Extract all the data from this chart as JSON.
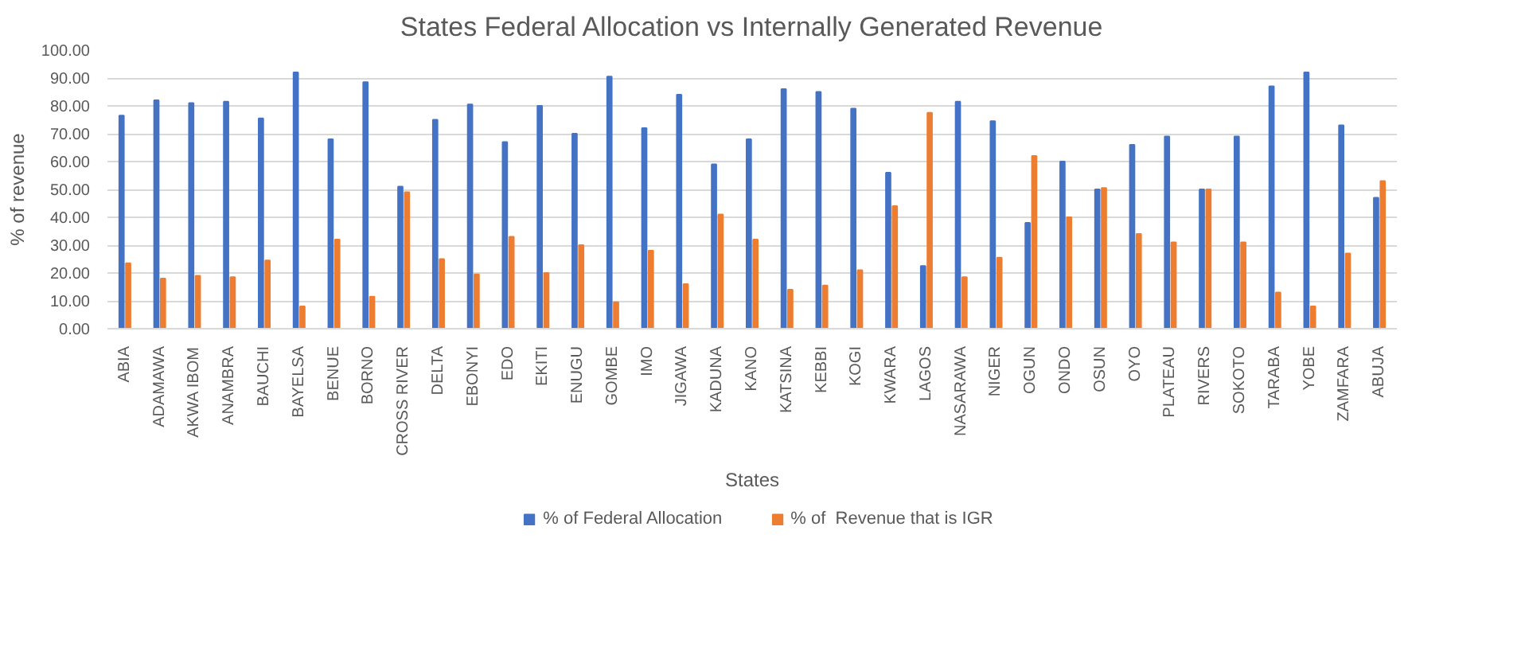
{
  "chart_data": {
    "type": "bar",
    "title": "States Federal Allocation vs Internally Generated Revenue",
    "xlabel": "States",
    "ylabel": "% of revenue",
    "categories": [
      "ABIA",
      "ADAMAWA",
      "AKWA IBOM",
      "ANAMBRA",
      "BAUCHI",
      "BAYELSA",
      "BENUE",
      "BORNO",
      "CROSS RIVER",
      "DELTA",
      "EBONYI",
      "EDO",
      "EKITI",
      "ENUGU",
      "GOMBE",
      "IMO",
      "JIGAWA",
      "KADUNA",
      "KANO",
      "KATSINA",
      "KEBBI",
      "KOGI",
      "KWARA",
      "LAGOS",
      "NASARAWA",
      "NIGER",
      "OGUN",
      "ONDO",
      "OSUN",
      "OYO",
      "PLATEAU",
      "RIVERS",
      "SOKOTO",
      "TARABA",
      "YOBE",
      "ZAMFARA",
      "ABUJA"
    ],
    "series": [
      {
        "name": "% of Federal Allocation",
        "color": "#4472c4",
        "values": [
          76.5,
          82,
          81,
          81.5,
          75.5,
          92,
          68,
          88.5,
          51,
          75,
          80.5,
          67,
          80,
          70,
          90.5,
          72,
          84,
          59,
          68,
          86,
          85,
          79,
          56,
          22.5,
          81.5,
          74.5,
          38,
          60,
          50,
          66,
          69,
          50,
          69,
          87,
          92,
          73,
          47
        ]
      },
      {
        "name": "% of  Revenue that is IGR",
        "color": "#ed7d31",
        "values": [
          23.5,
          18,
          19,
          18.5,
          24.5,
          8,
          32,
          11.5,
          49,
          25,
          19.5,
          33,
          20,
          30,
          9.5,
          28,
          16,
          41,
          32,
          14,
          15.5,
          21,
          44,
          77.5,
          18.5,
          25.5,
          62,
          40,
          50.5,
          34,
          31,
          50,
          31,
          13,
          8,
          27,
          53
        ]
      }
    ],
    "ylim": [
      0,
      100
    ],
    "yticks": [
      {
        "value": 0,
        "label": "0.00"
      },
      {
        "value": 10,
        "label": "10.00"
      },
      {
        "value": 20,
        "label": "20.00"
      },
      {
        "value": 30,
        "label": "30.00"
      },
      {
        "value": 40,
        "label": "40.00"
      },
      {
        "value": 50,
        "label": "50.00"
      },
      {
        "value": 60,
        "label": "60.00"
      },
      {
        "value": 70,
        "label": "70.00"
      },
      {
        "value": 80,
        "label": "80.00"
      },
      {
        "value": 90,
        "label": "90.00"
      },
      {
        "value": 100,
        "label": "100.00"
      }
    ],
    "grid": "y",
    "legend": "bottom"
  }
}
